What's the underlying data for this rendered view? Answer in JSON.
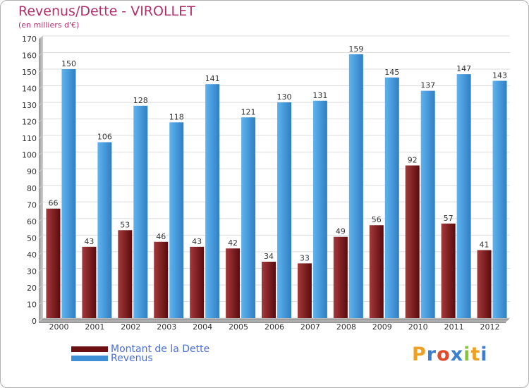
{
  "header": {
    "title": "Revenus/Dette - VIROLLET",
    "subtitle": "(en milliers d'€)"
  },
  "chart_data": {
    "type": "bar",
    "title": "Revenus/Dette - VIROLLET",
    "ylabel": "(en milliers d'€)",
    "xlabel": "",
    "categories": [
      "2000",
      "2001",
      "2002",
      "2003",
      "2004",
      "2005",
      "2006",
      "2007",
      "2008",
      "2009",
      "2010",
      "2011",
      "2012"
    ],
    "series": [
      {
        "name": "Montant de la Dette",
        "color": "#7a1a1d",
        "values": [
          66,
          43,
          53,
          46,
          43,
          42,
          34,
          33,
          49,
          56,
          92,
          57,
          41
        ]
      },
      {
        "name": "Revenus",
        "color": "#3f8fd6",
        "values": [
          150,
          106,
          128,
          118,
          141,
          121,
          130,
          131,
          159,
          145,
          137,
          147,
          143
        ]
      }
    ],
    "ylim": [
      0,
      170
    ],
    "yticks": [
      0,
      10,
      20,
      30,
      40,
      50,
      60,
      70,
      80,
      90,
      100,
      110,
      120,
      130,
      140,
      150,
      160,
      170
    ],
    "grid": true,
    "legend_position": "bottom-left"
  },
  "legend": {
    "items": [
      {
        "label": "Montant de la Dette",
        "color": "#6b0f12"
      },
      {
        "label": "Revenus",
        "color": "#3f8fd6"
      }
    ]
  },
  "logo": {
    "letters": [
      "P",
      "r",
      "o",
      "x",
      "i",
      "t",
      "i"
    ],
    "colors": [
      "#f0a020",
      "#3a7fd0",
      "#e04a2a",
      "#3a7fd0",
      "#8ac43a",
      "#f0a020",
      "#3a7fd0"
    ]
  }
}
